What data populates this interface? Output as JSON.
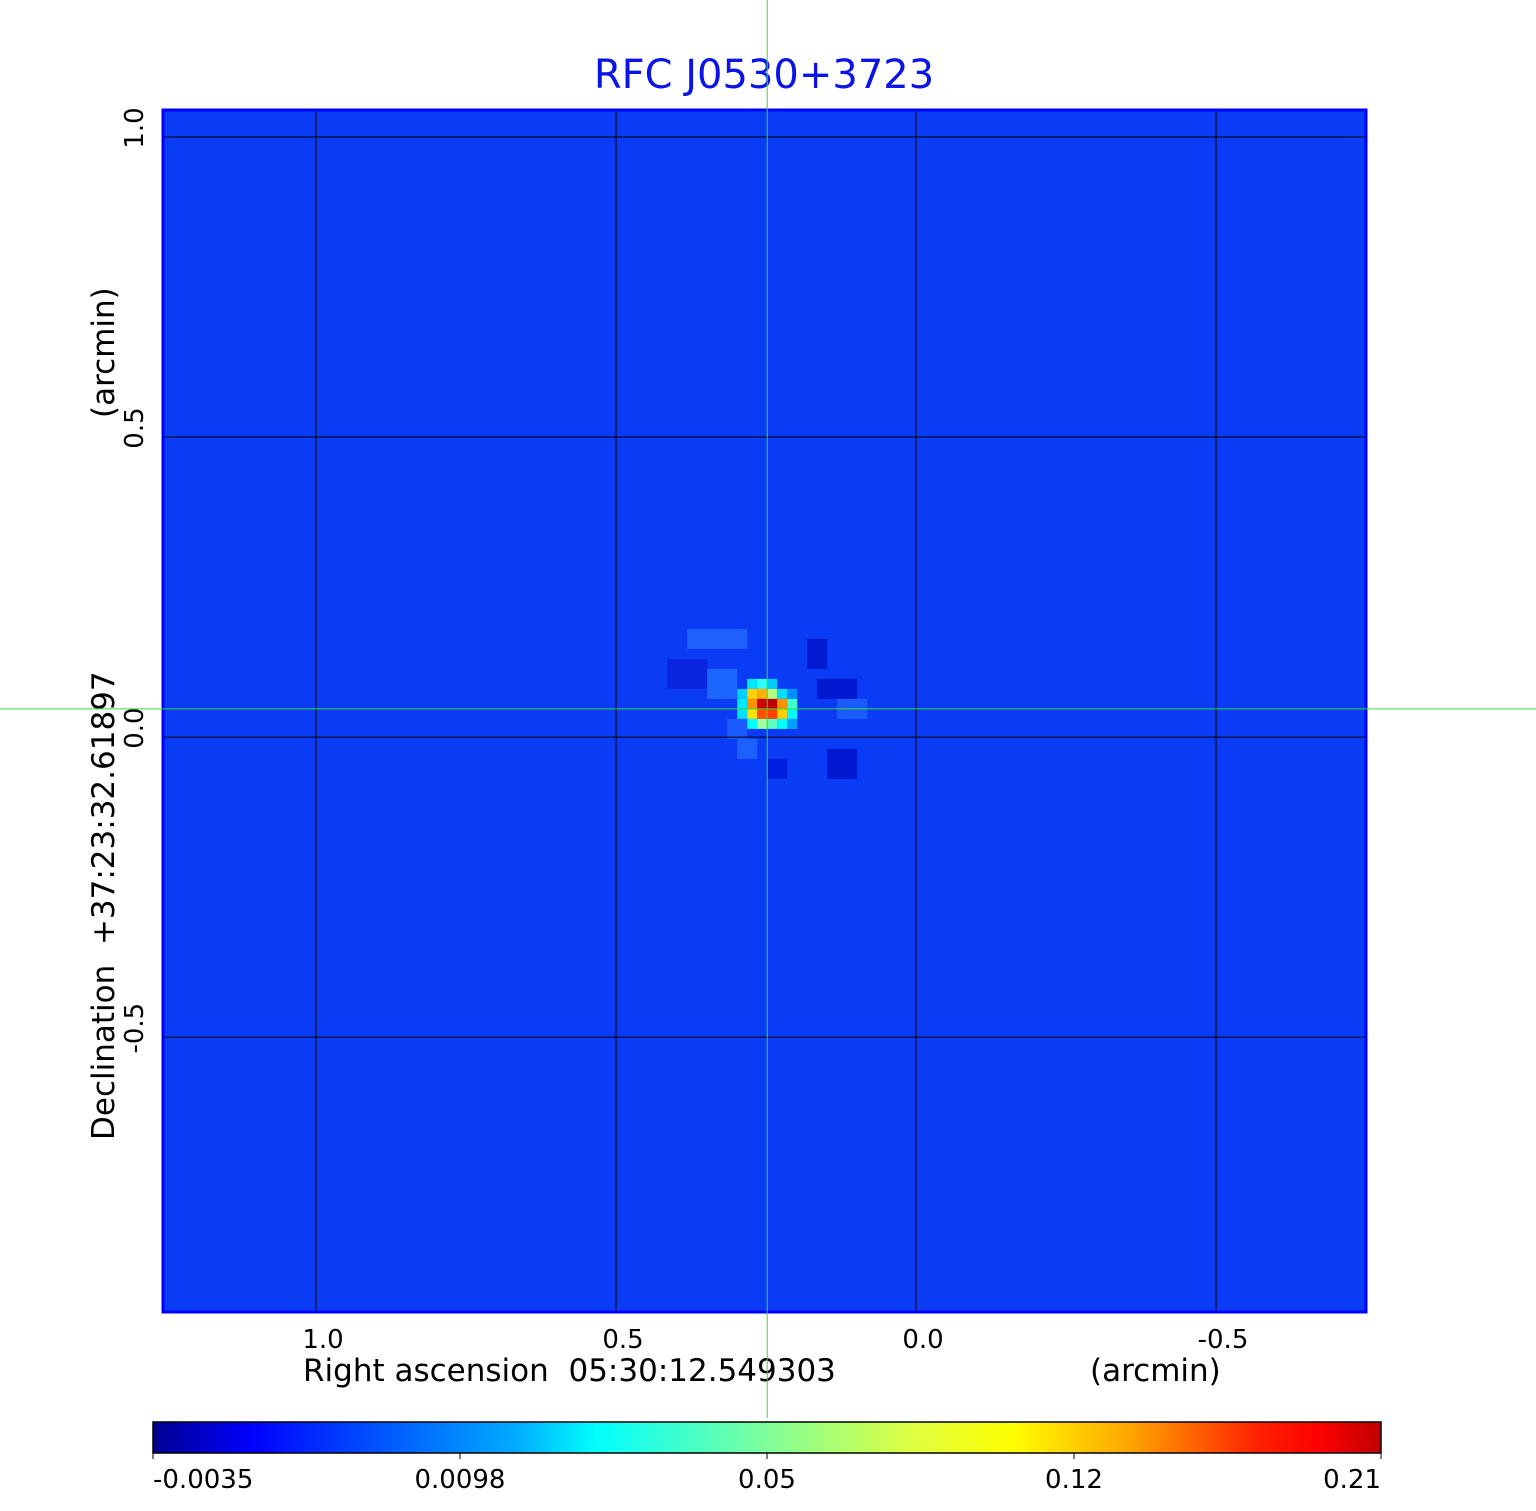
{
  "chart_data": {
    "type": "heatmap",
    "title": "RFC J0530+3723",
    "xlabel": "Right ascension  05:30:12.549303",
    "xunit": "(arcmin)",
    "ylabel": "Declination  +37:23:32.61897",
    "yunit": "(arcmin)",
    "xlim": [
      1.255,
      -0.75
    ],
    "ylim": [
      -0.958,
      1.045
    ],
    "xticks": [
      1.0,
      0.5,
      0.0,
      -0.5
    ],
    "xtick_labels": [
      "1.0",
      "0.5",
      "0.0",
      "-0.5"
    ],
    "yticks": [
      1.0,
      0.5,
      0.0,
      -0.5
    ],
    "ytick_labels": [
      "1.0",
      "0.5",
      "0.0",
      "-0.5"
    ],
    "grid": true,
    "crosshair": {
      "x": 0.248,
      "y": 0.047,
      "color": "#33dd33"
    },
    "peak": {
      "x": 0.248,
      "y": 0.047,
      "value": 0.21
    },
    "colormap": "jet",
    "colorbar": {
      "placement": "bottom",
      "tick_labels": [
        "-0.0035",
        "0.0098",
        "0.05",
        "0.12",
        "0.21"
      ],
      "range": [
        -0.0035,
        0.21
      ]
    },
    "colors": {
      "title": "#0a14e6",
      "background_level": "#0b3cf5",
      "frame": "#0000ff"
    }
  }
}
